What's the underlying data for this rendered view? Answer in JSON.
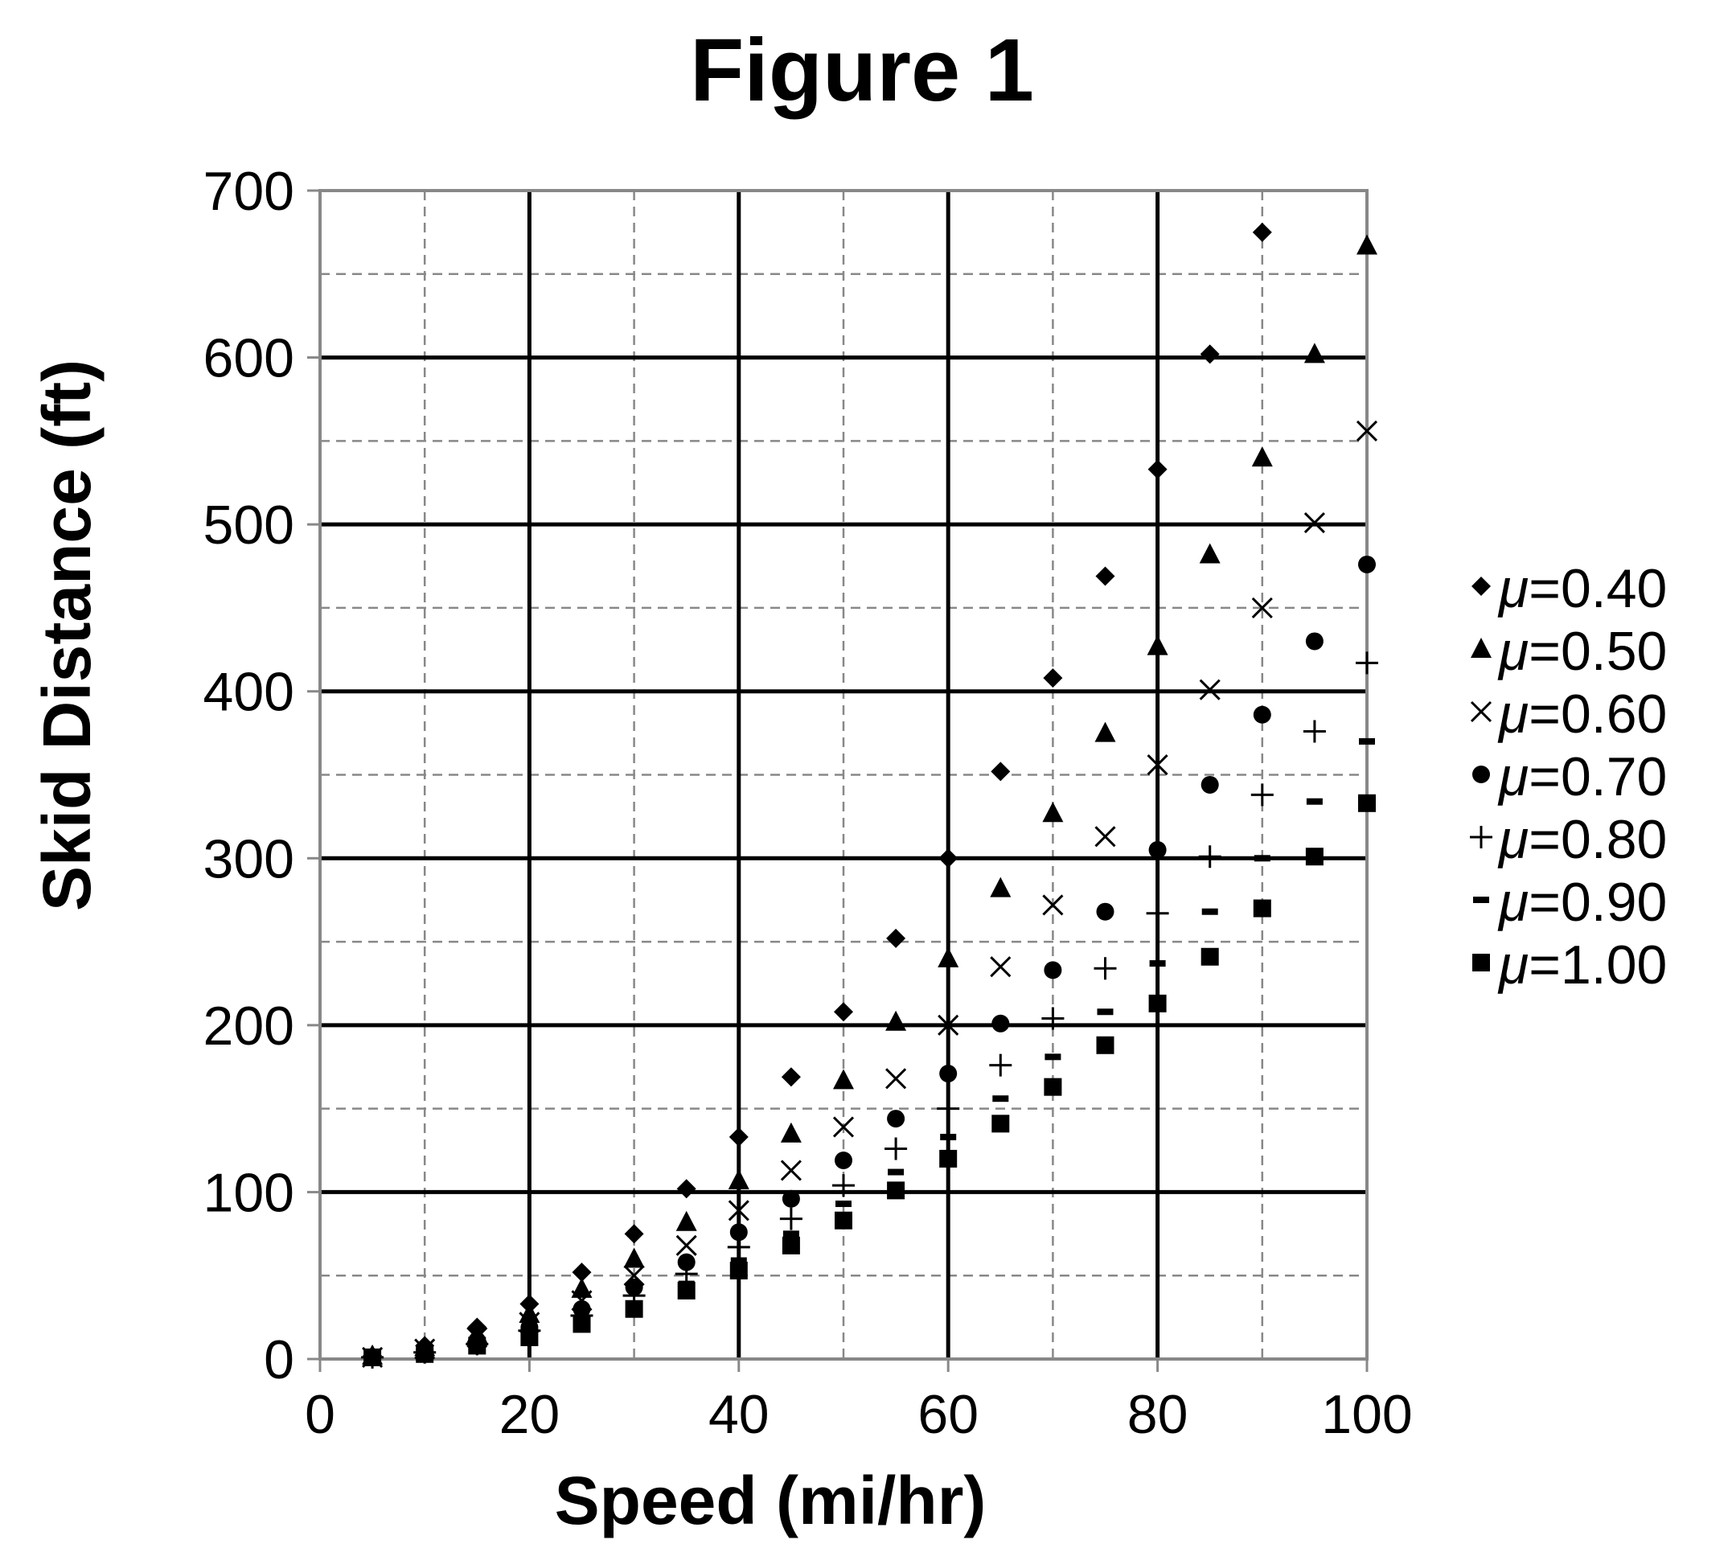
{
  "chart_data": {
    "type": "scatter",
    "title": "Figure 1",
    "xlabel": "Speed (mi/hr)",
    "ylabel": "Skid Distance (ft)",
    "xlim": [
      0,
      100
    ],
    "ylim": [
      0,
      700
    ],
    "x_major_ticks": [
      0,
      20,
      40,
      60,
      80,
      100
    ],
    "x_minor_ticks": [
      10,
      30,
      50,
      70,
      90
    ],
    "y_major_ticks": [
      0,
      100,
      200,
      300,
      400,
      500,
      600,
      700
    ],
    "y_minor_ticks": [
      50,
      150,
      250,
      350,
      450,
      550,
      650
    ],
    "x_tick_labels": [
      "0",
      "20",
      "40",
      "60",
      "80",
      "100"
    ],
    "y_tick_labels": [
      "0",
      "100",
      "200",
      "300",
      "400",
      "500",
      "600",
      "700"
    ],
    "grid": "major solid, minor dashed",
    "legend_position": "right",
    "legend_prefix": "μ",
    "x": [
      5,
      10,
      15,
      20,
      25,
      30,
      35,
      40,
      45,
      50,
      55,
      60,
      65,
      70,
      75,
      80,
      85,
      90,
      95,
      100
    ],
    "series": [
      {
        "name": "=0.40",
        "marker": "diamond",
        "values": [
          2,
          8,
          19,
          33,
          52,
          75,
          102,
          133,
          169,
          208,
          252,
          300,
          352,
          408,
          469,
          533,
          602,
          675,
          null,
          null
        ]
      },
      {
        "name": "=0.50",
        "marker": "triangle",
        "values": [
          2,
          7,
          15,
          27,
          42,
          60,
          82,
          107,
          135,
          167,
          202,
          240,
          282,
          327,
          375,
          427,
          482,
          540,
          602,
          667
        ]
      },
      {
        "name": "=0.60",
        "marker": "cross",
        "values": [
          1,
          6,
          13,
          22,
          35,
          50,
          68,
          89,
          113,
          139,
          168,
          200,
          235,
          272,
          313,
          356,
          401,
          450,
          501,
          556
        ]
      },
      {
        "name": "=0.70",
        "marker": "circle",
        "values": [
          1,
          5,
          11,
          19,
          30,
          43,
          58,
          76,
          96,
          119,
          144,
          171,
          201,
          233,
          268,
          305,
          344,
          386,
          430,
          476
        ]
      },
      {
        "name": "=0.80",
        "marker": "plus",
        "values": [
          1,
          4,
          9,
          17,
          26,
          38,
          51,
          67,
          84,
          104,
          126,
          150,
          176,
          204,
          234,
          267,
          301,
          338,
          376,
          417
        ]
      },
      {
        "name": "=0.90",
        "marker": "dash",
        "values": [
          1,
          4,
          8,
          15,
          23,
          33,
          45,
          59,
          75,
          93,
          112,
          133,
          156,
          181,
          208,
          237,
          268,
          300,
          334,
          370
        ]
      },
      {
        "name": "=1.00",
        "marker": "square",
        "values": [
          1,
          3,
          8,
          13,
          21,
          30,
          41,
          53,
          68,
          83,
          101,
          120,
          141,
          163,
          188,
          213,
          241,
          270,
          301,
          333
        ]
      }
    ]
  }
}
